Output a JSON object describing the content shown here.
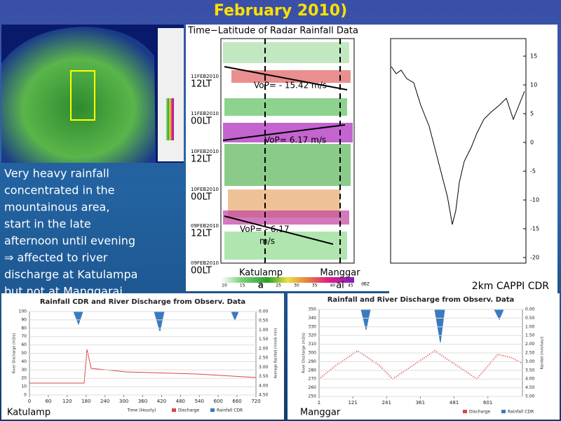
{
  "title": "February 2010)",
  "description": [
    "Very heavy rainfall",
    "concentrated in the",
    "mountainous area,",
    "start in the late",
    "afternoon until evening",
    "⇒ affected to river",
    "discharge at Katulampa",
    "but not at Manggarai"
  ],
  "hovmoller": {
    "title": "Time−Latitude of Radar Rainfall Data",
    "time_labels": [
      "12LT",
      "00LT",
      "12LT",
      "00LT",
      "12LT",
      "00LT"
    ],
    "date_labels": [
      "11FEB2010",
      "11FEB2010",
      "10FEB2010",
      "10FEB2010",
      "09FEB2010",
      "09FEB2010"
    ],
    "annotations": [
      "VoP= - 15.42 m/s",
      "VoP= 6.17 m/s",
      "VoP= - 6.17",
      "m/s"
    ],
    "station_labels": [
      [
        "Katulamp",
        "a"
      ],
      [
        "Manggar",
        "ai"
      ]
    ],
    "colorbar_ticks": [
      10,
      15,
      20,
      25,
      30,
      35,
      40,
      45
    ],
    "colorbar_unit": "dBZ"
  },
  "cdr_plot": {
    "label": "2km CAPPI CDR",
    "yticks": [
      15,
      10,
      5,
      0,
      -5,
      -10,
      -15,
      -20
    ]
  },
  "katulampa_chart": {
    "title": "Rainfall CDR and River Discharge from Observ. Data",
    "ylabel": "River Discharge (m3/s)",
    "y2label": "Average Rainfall (mm/6 min)",
    "xlabel": "Time (Hourly)",
    "yticks": [
      0,
      10,
      20,
      30,
      40,
      50,
      60,
      70,
      80,
      90,
      100
    ],
    "y2ticks": [
      "0.00",
      "0.50",
      "1.00",
      "1.50",
      "2.00",
      "2.50",
      "3.00",
      "3.50",
      "4.00",
      "4.50"
    ],
    "xticks": [
      0,
      60,
      120,
      180,
      240,
      300,
      360,
      420,
      480,
      540,
      600,
      660,
      720
    ],
    "legend": [
      "Discharge",
      "Rainfall CDR"
    ],
    "station": "Katulamp"
  },
  "manggarai_chart": {
    "title": "Rainfall and River Discharge from Observ. Data",
    "ylabel": "River Discharge (m3/s)",
    "y2label": "Rainfall (mm/hour)",
    "yticks": [
      250,
      260,
      270,
      280,
      290,
      300,
      310,
      320,
      330,
      340,
      350
    ],
    "y2ticks": [
      "0.00",
      "0.50",
      "1.00",
      "1.50",
      "2.00",
      "2.50",
      "3.00",
      "3.50",
      "4.00",
      "4.50",
      "5.00"
    ],
    "xticks": [
      1,
      121,
      241,
      361,
      481,
      601
    ],
    "legend": [
      "Discharge",
      "Rainfall CDR"
    ],
    "station": "Manggar"
  }
}
